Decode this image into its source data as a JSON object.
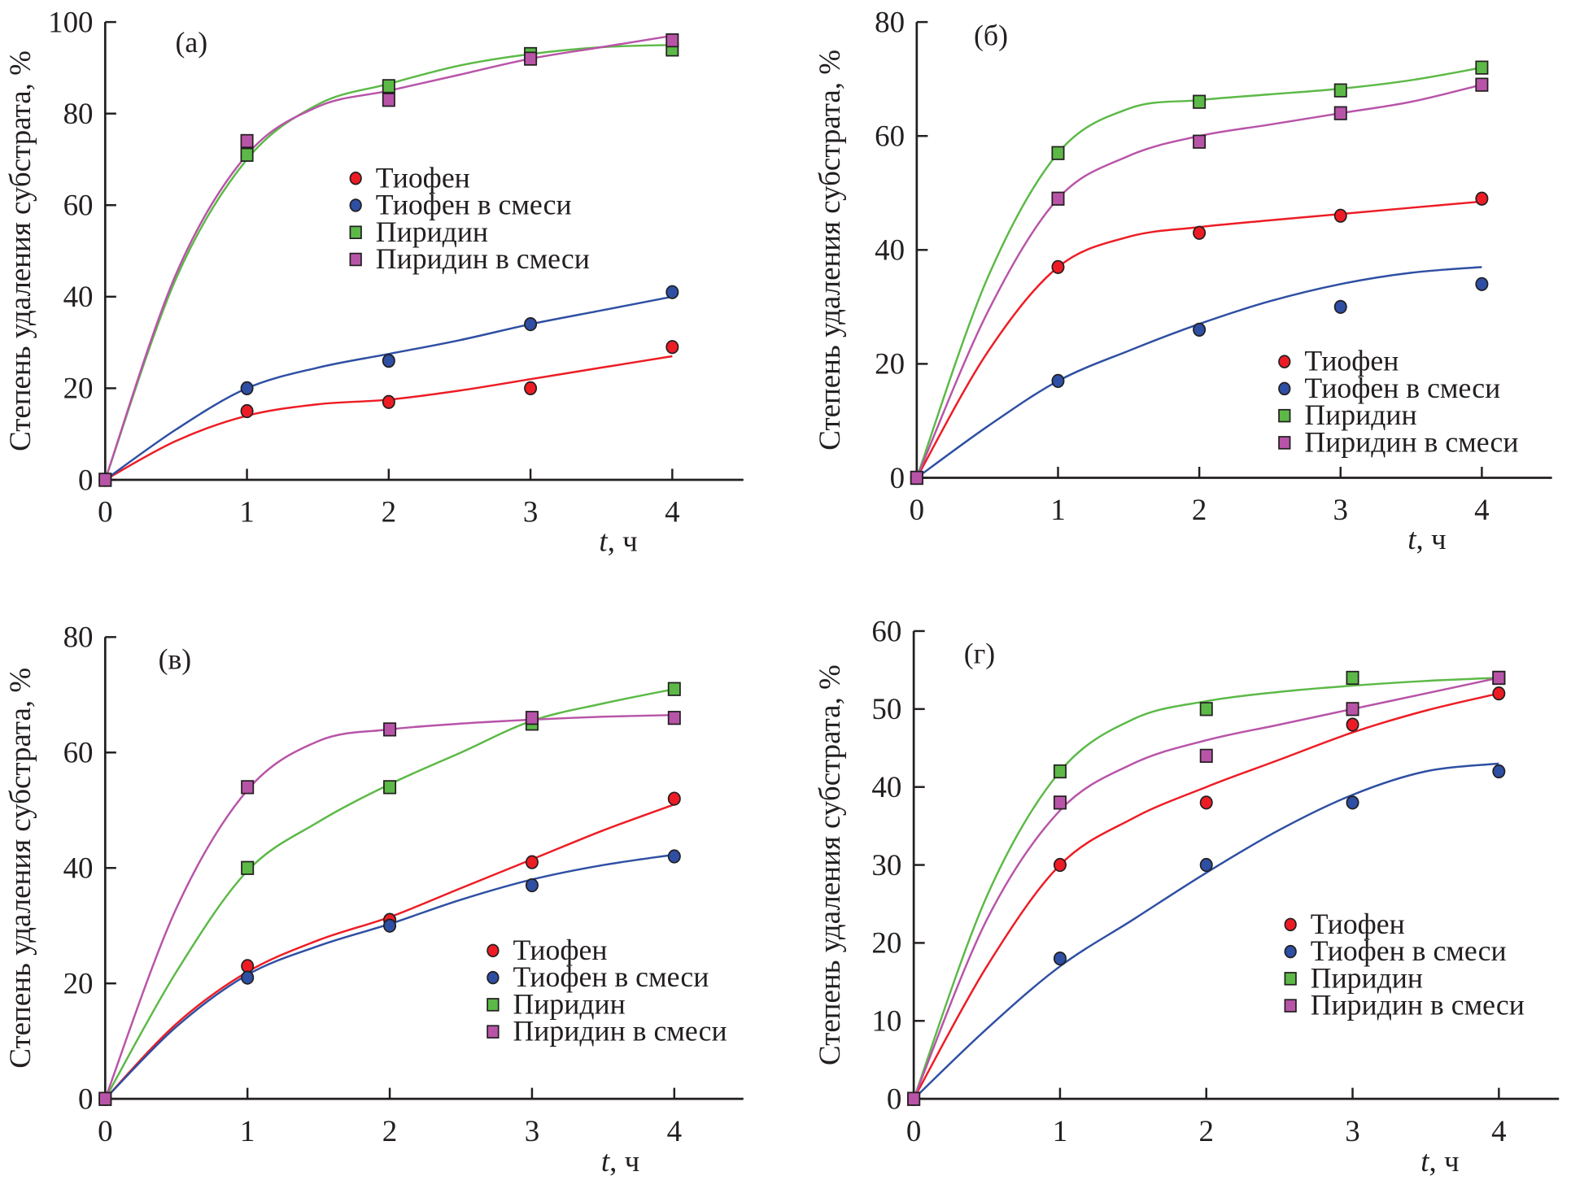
{
  "chart_data": [
    {
      "type": "line",
      "panel_label": "(а)",
      "xlabel_italic": "t",
      "xlabel_unit": ", ч",
      "ylabel": "Степень удаления субстрата, %",
      "xlim": [
        0,
        4.5
      ],
      "ylim": [
        0,
        100
      ],
      "xticks": [
        0,
        1,
        2,
        3,
        4
      ],
      "yticks": [
        0,
        20,
        40,
        60,
        80,
        100
      ],
      "legend_position": "center-right",
      "grid": false,
      "x": [
        0,
        1,
        2,
        3,
        4
      ],
      "series": [
        {
          "name": "Тиофен",
          "marker": "circle",
          "color": "#ed1c24",
          "values": [
            0,
            15,
            17,
            20,
            29
          ],
          "fit": [
            0,
            8.5,
            14,
            16.5,
            17.5,
            19.5,
            22,
            24.5,
            27
          ]
        },
        {
          "name": "Тиофен в смеси",
          "marker": "circle",
          "color": "#2e4fa3",
          "values": [
            0,
            20,
            26,
            34,
            41
          ],
          "fit": [
            0,
            11,
            20,
            24.5,
            27.5,
            30.5,
            34,
            37,
            40
          ]
        },
        {
          "name": "Пиридин",
          "marker": "square",
          "color": "#5cb947",
          "values": [
            0,
            71,
            86,
            93,
            94
          ],
          "fit": [
            0,
            44,
            70,
            82,
            86.5,
            90.5,
            93,
            94.5,
            95
          ]
        },
        {
          "name": "Пиридин в смеси",
          "marker": "square",
          "color": "#b854a8",
          "values": [
            0,
            74,
            83,
            92,
            96
          ],
          "fit": [
            0,
            45,
            71,
            81.5,
            85,
            88.5,
            92,
            94.5,
            97
          ]
        }
      ]
    },
    {
      "type": "line",
      "panel_label": "(б)",
      "xlabel_italic": "t",
      "xlabel_unit": ", ч",
      "ylabel": "Степень удаления субстрата, %",
      "xlim": [
        0,
        4.5
      ],
      "ylim": [
        0,
        80
      ],
      "xticks": [
        0,
        1,
        2,
        3,
        4
      ],
      "yticks": [
        0,
        20,
        40,
        60,
        80
      ],
      "legend_position": "bottom-right",
      "grid": false,
      "x": [
        0,
        1,
        2,
        3,
        4
      ],
      "series": [
        {
          "name": "Тиофен",
          "marker": "circle",
          "color": "#ed1c24",
          "values": [
            0,
            37,
            43,
            46,
            49
          ],
          "fit": [
            0,
            22,
            37,
            42.3,
            44,
            45.2,
            46.3,
            47.4,
            48.5
          ]
        },
        {
          "name": "Тиофен в смеси",
          "marker": "circle",
          "color": "#2e4fa3",
          "values": [
            0,
            17,
            26,
            30,
            34
          ],
          "fit": [
            0,
            9,
            17,
            22.3,
            27,
            31,
            34,
            36,
            37
          ]
        },
        {
          "name": "Пиридин",
          "marker": "square",
          "color": "#5cb947",
          "values": [
            0,
            57,
            66,
            68,
            72
          ],
          "fit": [
            0,
            35,
            57,
            64.8,
            66.3,
            67.3,
            68.3,
            69.8,
            72
          ]
        },
        {
          "name": "Пиридин в смеси",
          "marker": "square",
          "color": "#b854a8",
          "values": [
            0,
            49,
            59,
            64,
            69
          ],
          "fit": [
            0,
            29,
            49,
            56.5,
            60,
            62,
            64,
            66,
            69
          ]
        }
      ]
    },
    {
      "type": "line",
      "panel_label": "(в)",
      "xlabel_italic": "t",
      "xlabel_unit": ", ч",
      "ylabel": "Степень удаления субстрата, %",
      "xlim": [
        0,
        4.5
      ],
      "ylim": [
        0,
        80
      ],
      "xticks": [
        0,
        1,
        2,
        3,
        4
      ],
      "yticks": [
        0,
        20,
        40,
        60,
        80
      ],
      "legend_position": "bottom-right",
      "grid": false,
      "x": [
        0,
        1,
        2,
        3,
        4
      ],
      "series": [
        {
          "name": "Тиофен",
          "marker": "circle",
          "color": "#ed1c24",
          "values": [
            0,
            23,
            31,
            41,
            52
          ],
          "fit": [
            0,
            13,
            22,
            27.5,
            31.5,
            36.5,
            41.5,
            46.5,
            51
          ]
        },
        {
          "name": "Тиофен в смеси",
          "marker": "circle",
          "color": "#2e4fa3",
          "values": [
            0,
            21,
            30,
            37,
            42
          ],
          "fit": [
            0,
            12.5,
            21.5,
            26.5,
            30.3,
            34.5,
            38,
            40.5,
            42.3
          ]
        },
        {
          "name": "Пиридин",
          "marker": "square",
          "color": "#5cb947",
          "values": [
            0,
            40,
            54,
            65,
            71
          ],
          "fit": [
            0,
            22,
            39.5,
            48,
            54.5,
            60,
            65.5,
            68.5,
            71
          ]
        },
        {
          "name": "Пиридин в смеси",
          "marker": "square",
          "color": "#b854a8",
          "values": [
            0,
            54,
            64,
            66,
            66
          ],
          "fit": [
            0,
            33,
            53.5,
            62,
            64,
            65,
            65.7,
            66.2,
            66.5
          ]
        }
      ]
    },
    {
      "type": "line",
      "panel_label": "(г)",
      "xlabel_italic": "t",
      "xlabel_unit": ", ч",
      "ylabel": "Степень удаления субстрата, %",
      "xlim": [
        0,
        4.5
      ],
      "ylim": [
        0,
        60
      ],
      "xticks": [
        0,
        1,
        2,
        3,
        4
      ],
      "yticks": [
        0,
        10,
        20,
        30,
        40,
        50,
        60
      ],
      "legend_position": "bottom-right",
      "grid": false,
      "x": [
        0,
        1,
        2,
        3,
        4
      ],
      "series": [
        {
          "name": "Тиофен",
          "marker": "circle",
          "color": "#ed1c24",
          "values": [
            0,
            30,
            38,
            48,
            52
          ],
          "fit": [
            0,
            17,
            30,
            36,
            40,
            43.5,
            47,
            49.8,
            52
          ]
        },
        {
          "name": "Тиофен в смеси",
          "marker": "circle",
          "color": "#2e4fa3",
          "values": [
            0,
            18,
            30,
            38,
            42
          ],
          "fit": [
            0,
            9,
            17,
            23,
            29,
            34.5,
            39,
            42,
            43
          ]
        },
        {
          "name": "Пиридин",
          "marker": "square",
          "color": "#5cb947",
          "values": [
            0,
            42,
            50,
            54,
            54
          ],
          "fit": [
            0,
            26,
            42,
            48.7,
            51,
            52.2,
            53,
            53.6,
            54
          ]
        },
        {
          "name": "Пиридин в смеси",
          "marker": "square",
          "color": "#b854a8",
          "values": [
            0,
            38,
            44,
            50,
            54
          ],
          "fit": [
            0,
            23,
            37,
            43,
            46,
            48,
            50,
            52,
            54
          ]
        }
      ]
    }
  ],
  "fit_x": [
    0,
    0.5,
    1,
    1.5,
    2,
    2.5,
    3,
    3.5,
    4
  ]
}
